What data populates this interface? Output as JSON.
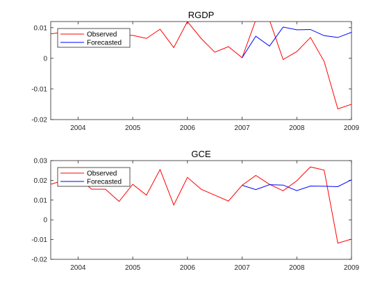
{
  "chart_data": [
    {
      "type": "line",
      "title": "RGDP",
      "xlim": [
        2003.5,
        2009
      ],
      "ylim": [
        -0.02,
        0.012
      ],
      "xticks": [
        "2004",
        "2005",
        "2006",
        "2007",
        "2008",
        "2009"
      ],
      "yticks": [
        "0.01",
        "0",
        "-0.01",
        "-0.02"
      ],
      "ytick_values": [
        0.01,
        0,
        -0.01,
        -0.02
      ],
      "legend_position": "top-left",
      "series": [
        {
          "name": "Observed",
          "color": "#ff0000",
          "x": [
            2003.5,
            2003.75,
            2004,
            2004.25,
            2004.5,
            2004.75,
            2005,
            2005.25,
            2005.5,
            2005.75,
            2006,
            2006.25,
            2006.5,
            2006.75,
            2007,
            2007.25,
            2007.5,
            2007.75,
            2008,
            2008.25,
            2008.5,
            2008.75,
            2009
          ],
          "y": [
            0.008,
            0.0085,
            0.009,
            0.0075,
            0.008,
            0.0075,
            0.0075,
            0.0065,
            0.0095,
            0.0035,
            0.012,
            0.0065,
            0.002,
            0.0038,
            0.0002,
            0.0125,
            0.0125,
            -0.0004,
            0.0022,
            0.0068,
            -0.001,
            -0.0165,
            -0.015
          ]
        },
        {
          "name": "Forecasted",
          "color": "#0000ff",
          "x": [
            2007,
            2007.25,
            2007.5,
            2007.75,
            2008,
            2008.25,
            2008.5,
            2008.75,
            2009
          ],
          "y": [
            0.0002,
            0.0072,
            0.004,
            0.0102,
            0.0093,
            0.0094,
            0.0074,
            0.0068,
            0.0085
          ]
        }
      ]
    },
    {
      "type": "line",
      "title": "GCE",
      "xlim": [
        2003.5,
        2009
      ],
      "ylim": [
        -0.02,
        0.03
      ],
      "xticks": [
        "2004",
        "2005",
        "2006",
        "2007",
        "2008",
        "2009"
      ],
      "yticks": [
        "0.03",
        "0.02",
        "0.01",
        "0",
        "-0.01",
        "-0.02"
      ],
      "ytick_values": [
        0.03,
        0.02,
        0.01,
        0,
        -0.01,
        -0.02
      ],
      "legend_position": "top-left",
      "series": [
        {
          "name": "Observed",
          "color": "#ff0000",
          "x": [
            2003.5,
            2003.75,
            2004,
            2004.25,
            2004.5,
            2004.75,
            2005,
            2005.25,
            2005.5,
            2005.75,
            2006,
            2006.25,
            2006.5,
            2006.75,
            2007,
            2007.25,
            2007.5,
            2007.75,
            2008,
            2008.25,
            2008.5,
            2008.75,
            2009
          ],
          "y": [
            0.018,
            0.02,
            0.021,
            0.0155,
            0.0155,
            0.0093,
            0.018,
            0.0125,
            0.0255,
            0.0075,
            0.0215,
            0.0155,
            0.0125,
            0.0095,
            0.0175,
            0.0225,
            0.018,
            0.0147,
            0.0198,
            0.0268,
            0.0252,
            -0.0118,
            -0.0098
          ]
        },
        {
          "name": "Forecasted",
          "color": "#0000ff",
          "x": [
            2007,
            2007.25,
            2007.5,
            2007.75,
            2008,
            2008.25,
            2008.5,
            2008.75,
            2009
          ],
          "y": [
            0.0175,
            0.0153,
            0.0178,
            0.0176,
            0.0148,
            0.0171,
            0.017,
            0.0168,
            0.0203
          ]
        }
      ]
    }
  ]
}
